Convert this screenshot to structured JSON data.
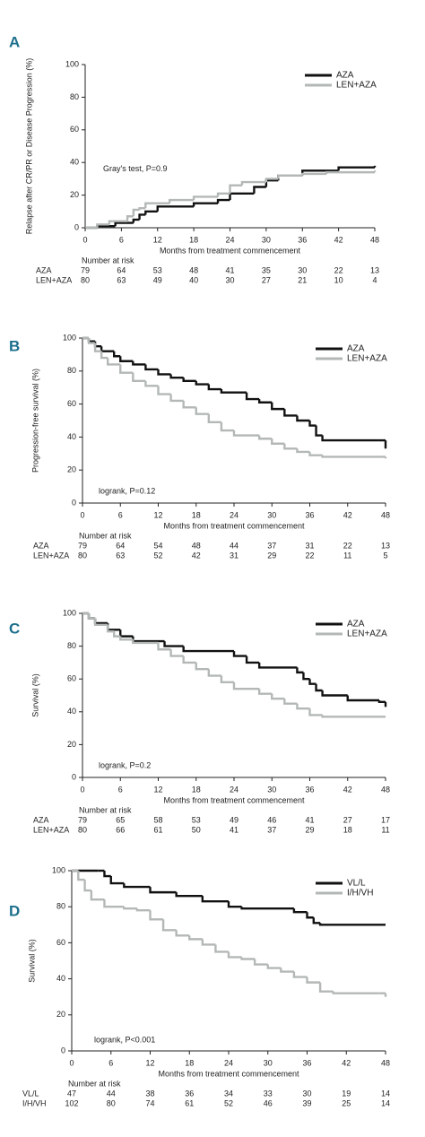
{
  "chart_data": [
    {
      "type": "line",
      "step": true,
      "panel": "A",
      "ylabel": "Relapse after CR/PR or Disease Progression (%)",
      "xlabel": "Months from treatment commencement",
      "annotation": "Gray's test,  P=0.9",
      "xlim": [
        0,
        48
      ],
      "ylim": [
        0,
        100
      ],
      "xticks": [
        0,
        6,
        12,
        18,
        24,
        30,
        36,
        42,
        48
      ],
      "yticks": [
        0,
        20,
        40,
        60,
        80,
        100
      ],
      "series": [
        {
          "name": "AZA",
          "color": "#111111",
          "x": [
            0,
            2,
            5,
            8,
            9,
            10,
            12,
            18,
            22,
            24,
            28,
            30,
            32,
            36,
            42,
            48
          ],
          "values": [
            0,
            1,
            3,
            5,
            8,
            10,
            13,
            15,
            17,
            21,
            25,
            29,
            32,
            35,
            37,
            38
          ]
        },
        {
          "name": "LEN+AZA",
          "color": "#b3b8b6",
          "x": [
            0,
            2,
            4,
            7,
            8,
            9,
            10,
            14,
            18,
            22,
            24,
            26,
            30,
            32,
            36,
            40,
            48
          ],
          "values": [
            0,
            2,
            4,
            7,
            11,
            12,
            15,
            17,
            19,
            21,
            26,
            28,
            30,
            32,
            33,
            34,
            35
          ]
        }
      ],
      "risk_title": "Number at risk",
      "risk_rows": [
        {
          "name": "AZA",
          "values": [
            79,
            64,
            53,
            48,
            41,
            35,
            30,
            22,
            13
          ]
        },
        {
          "name": "LEN+AZA",
          "values": [
            80,
            63,
            49,
            40,
            30,
            27,
            21,
            10,
            4
          ]
        }
      ]
    },
    {
      "type": "line",
      "step": true,
      "panel": "B",
      "ylabel": "Progression-free survival (%)",
      "xlabel": "Months from treatment commencement",
      "annotation": "logrank, P=0.12",
      "xlim": [
        0,
        48
      ],
      "ylim": [
        0,
        100
      ],
      "xticks": [
        0,
        6,
        12,
        18,
        24,
        30,
        36,
        42,
        48
      ],
      "yticks": [
        0,
        20,
        40,
        60,
        80,
        100
      ],
      "series": [
        {
          "name": "AZA",
          "color": "#111111",
          "x": [
            0,
            1,
            2,
            3,
            5,
            6,
            8,
            10,
            12,
            14,
            16,
            18,
            20,
            22,
            26,
            28,
            30,
            32,
            34,
            36,
            37,
            38,
            47,
            48
          ],
          "values": [
            100,
            98,
            95,
            92,
            89,
            86,
            84,
            81,
            78,
            76,
            74,
            72,
            69,
            67,
            63,
            61,
            57,
            53,
            50,
            47,
            41,
            38,
            38,
            33
          ]
        },
        {
          "name": "LEN+AZA",
          "color": "#b3b8b6",
          "x": [
            0,
            1,
            2,
            3,
            4,
            6,
            8,
            10,
            12,
            14,
            16,
            18,
            20,
            22,
            24,
            28,
            30,
            32,
            34,
            36,
            38,
            48
          ],
          "values": [
            100,
            97,
            92,
            88,
            84,
            79,
            74,
            71,
            66,
            62,
            58,
            54,
            49,
            44,
            41,
            39,
            36,
            33,
            31,
            29,
            28,
            27
          ]
        }
      ],
      "risk_title": "Number at risk",
      "risk_rows": [
        {
          "name": "AZA",
          "values": [
            79,
            64,
            54,
            48,
            44,
            37,
            31,
            22,
            13
          ]
        },
        {
          "name": "LEN+AZA",
          "values": [
            80,
            63,
            52,
            42,
            31,
            29,
            22,
            11,
            5
          ]
        }
      ]
    },
    {
      "type": "line",
      "step": true,
      "panel": "C",
      "ylabel": "Survival (%)",
      "xlabel": "Months from treatment commencement",
      "annotation": "logrank, P=0.2",
      "xlim": [
        0,
        48
      ],
      "ylim": [
        0,
        100
      ],
      "xticks": [
        0,
        6,
        12,
        18,
        24,
        30,
        36,
        42,
        48
      ],
      "yticks": [
        0,
        20,
        40,
        60,
        80,
        100
      ],
      "series": [
        {
          "name": "AZA",
          "color": "#111111",
          "x": [
            0,
            1,
            2,
            4,
            6,
            8,
            13,
            16,
            24,
            26,
            28,
            34,
            35,
            36,
            37,
            38,
            42,
            47,
            48
          ],
          "values": [
            100,
            97,
            94,
            90,
            86,
            83,
            80,
            77,
            74,
            70,
            67,
            64,
            60,
            57,
            53,
            50,
            47,
            46,
            43
          ]
        },
        {
          "name": "LEN+AZA",
          "color": "#b3b8b6",
          "x": [
            0,
            1,
            2,
            4,
            5,
            6,
            8,
            12,
            14,
            16,
            18,
            20,
            22,
            24,
            28,
            30,
            32,
            34,
            36,
            38,
            48
          ],
          "values": [
            100,
            97,
            93,
            89,
            86,
            84,
            82,
            78,
            74,
            70,
            66,
            62,
            58,
            54,
            51,
            48,
            45,
            42,
            38,
            37,
            37
          ]
        }
      ],
      "risk_title": "Number at risk",
      "risk_rows": [
        {
          "name": "AZA",
          "values": [
            79,
            65,
            58,
            53,
            49,
            46,
            41,
            27,
            17
          ]
        },
        {
          "name": "LEN+AZA",
          "values": [
            80,
            66,
            61,
            50,
            41,
            37,
            29,
            18,
            11
          ]
        }
      ]
    },
    {
      "type": "line",
      "step": true,
      "panel": "D",
      "ylabel": "Survival (%)",
      "xlabel": "Months from treatment commencement",
      "annotation": "logrank, P<0.001",
      "xlim": [
        0,
        48
      ],
      "ylim": [
        0,
        100
      ],
      "xticks": [
        0,
        6,
        12,
        18,
        24,
        30,
        36,
        42,
        48
      ],
      "yticks": [
        0,
        20,
        40,
        60,
        80,
        100
      ],
      "series": [
        {
          "name": "VL/L",
          "color": "#111111",
          "x": [
            0,
            4,
            5,
            6,
            8,
            12,
            16,
            20,
            24,
            26,
            34,
            36,
            37,
            38,
            48
          ],
          "values": [
            100,
            100,
            97,
            93,
            91,
            88,
            86,
            83,
            80,
            79,
            77,
            74,
            71,
            70,
            70
          ]
        },
        {
          "name": "I/H/VH",
          "color": "#b3b8b6",
          "x": [
            0,
            1,
            2,
            3,
            5,
            8,
            10,
            12,
            14,
            16,
            18,
            20,
            22,
            24,
            26,
            28,
            30,
            32,
            34,
            36,
            38,
            40,
            47,
            48
          ],
          "values": [
            100,
            95,
            89,
            84,
            80,
            79,
            78,
            73,
            67,
            64,
            62,
            59,
            55,
            52,
            51,
            48,
            46,
            44,
            41,
            38,
            33,
            32,
            32,
            30
          ]
        }
      ],
      "risk_title": "Number at risk",
      "risk_rows": [
        {
          "name": "VL/L",
          "values": [
            47,
            44,
            38,
            36,
            34,
            33,
            30,
            19,
            14
          ]
        },
        {
          "name": "I/H/VH",
          "values": [
            102,
            80,
            74,
            61,
            52,
            46,
            39,
            25,
            14
          ]
        }
      ]
    }
  ]
}
